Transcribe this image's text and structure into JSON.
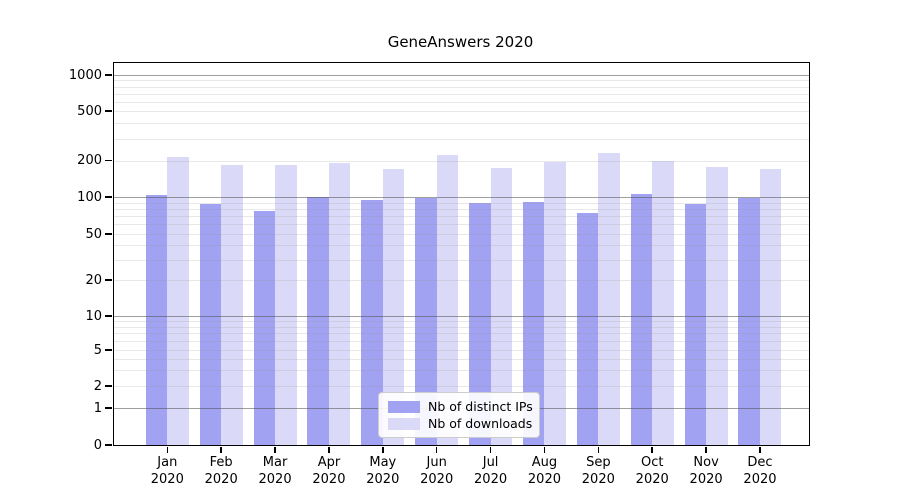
{
  "title": "GeneAnswers 2020",
  "colors": {
    "bar_distinct_ips": "#a2a2f2",
    "bar_downloads": "#dadaf8",
    "grid_major": "#888888",
    "grid_minor": "#e8e8e8",
    "axis": "#000000",
    "background": "#ffffff",
    "legend_border": "#cccccc"
  },
  "chart_data": {
    "type": "bar",
    "title": "GeneAnswers 2020",
    "categories": [
      "Jan 2020",
      "Feb 2020",
      "Mar 2020",
      "Apr 2020",
      "May 2020",
      "Jun 2020",
      "Jul 2020",
      "Aug 2020",
      "Sep 2020",
      "Oct 2020",
      "Nov 2020",
      "Dec 2020"
    ],
    "month_labels": [
      "Jan",
      "Feb",
      "Mar",
      "Apr",
      "May",
      "Jun",
      "Jul",
      "Aug",
      "Sep",
      "Oct",
      "Nov",
      "Dec"
    ],
    "year_label": "2020",
    "series": [
      {
        "name": "Nb of distinct IPs",
        "color": "#a2a2f2",
        "values": [
          103,
          88,
          77,
          100,
          95,
          98,
          90,
          91,
          74,
          106,
          88,
          99
        ]
      },
      {
        "name": "Nb of downloads",
        "color": "#dadaf8",
        "values": [
          213,
          182,
          185,
          190,
          170,
          220,
          174,
          195,
          230,
          199,
          176,
          171
        ]
      }
    ],
    "y_ticks": [
      1000,
      500,
      200,
      100,
      50,
      20,
      10,
      5,
      2,
      1,
      0
    ],
    "y_scale": "log",
    "ylim": [
      0,
      1000
    ],
    "grid": true,
    "legend_position": "bottom-center",
    "xlabel": "",
    "ylabel": ""
  }
}
